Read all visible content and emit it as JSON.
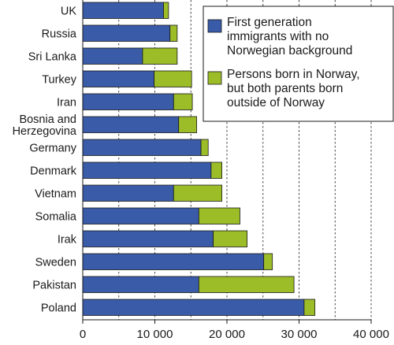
{
  "chart_data": {
    "type": "bar",
    "orientation": "horizontal",
    "stacked": true,
    "categories": [
      "UK",
      "Russia",
      "Sri Lanka",
      "Turkey",
      "Iran",
      "Bosnia and\nHerzegovina",
      "Germany",
      "Denmark",
      "Vietnam",
      "Somalia",
      "Irak",
      "Sweden",
      "Pakistan",
      "Poland"
    ],
    "series": [
      {
        "name": "First generation immigrants with no Norwegian background",
        "color": "#3a5ba8",
        "values": [
          11200,
          12100,
          8300,
          9900,
          12600,
          13300,
          16400,
          17800,
          12600,
          16100,
          18100,
          25100,
          16100,
          30700
        ]
      },
      {
        "name": "Persons born in Norway, but both parents born outside of Norway",
        "color": "#9cbc28",
        "values": [
          700,
          1000,
          4800,
          5200,
          2600,
          2500,
          1000,
          1500,
          6700,
          5700,
          4700,
          1200,
          13200,
          1500
        ]
      }
    ],
    "legend_lines": [
      [
        "First generation",
        "immigrants with no",
        "Norwegian background"
      ],
      [
        "Persons born in Norway,",
        "but both parents born",
        "outside of Norway"
      ]
    ],
    "x_ticks": [
      0,
      10000,
      20000,
      30000,
      40000
    ],
    "x_tick_labels": [
      "0",
      "10 000",
      "20 000",
      "30 000",
      "40 000"
    ],
    "xlim": [
      0,
      40000
    ],
    "grid": "vertical dashed at 5000 steps",
    "legend_position": "top-right",
    "title": "",
    "xlabel": "",
    "ylabel": ""
  }
}
